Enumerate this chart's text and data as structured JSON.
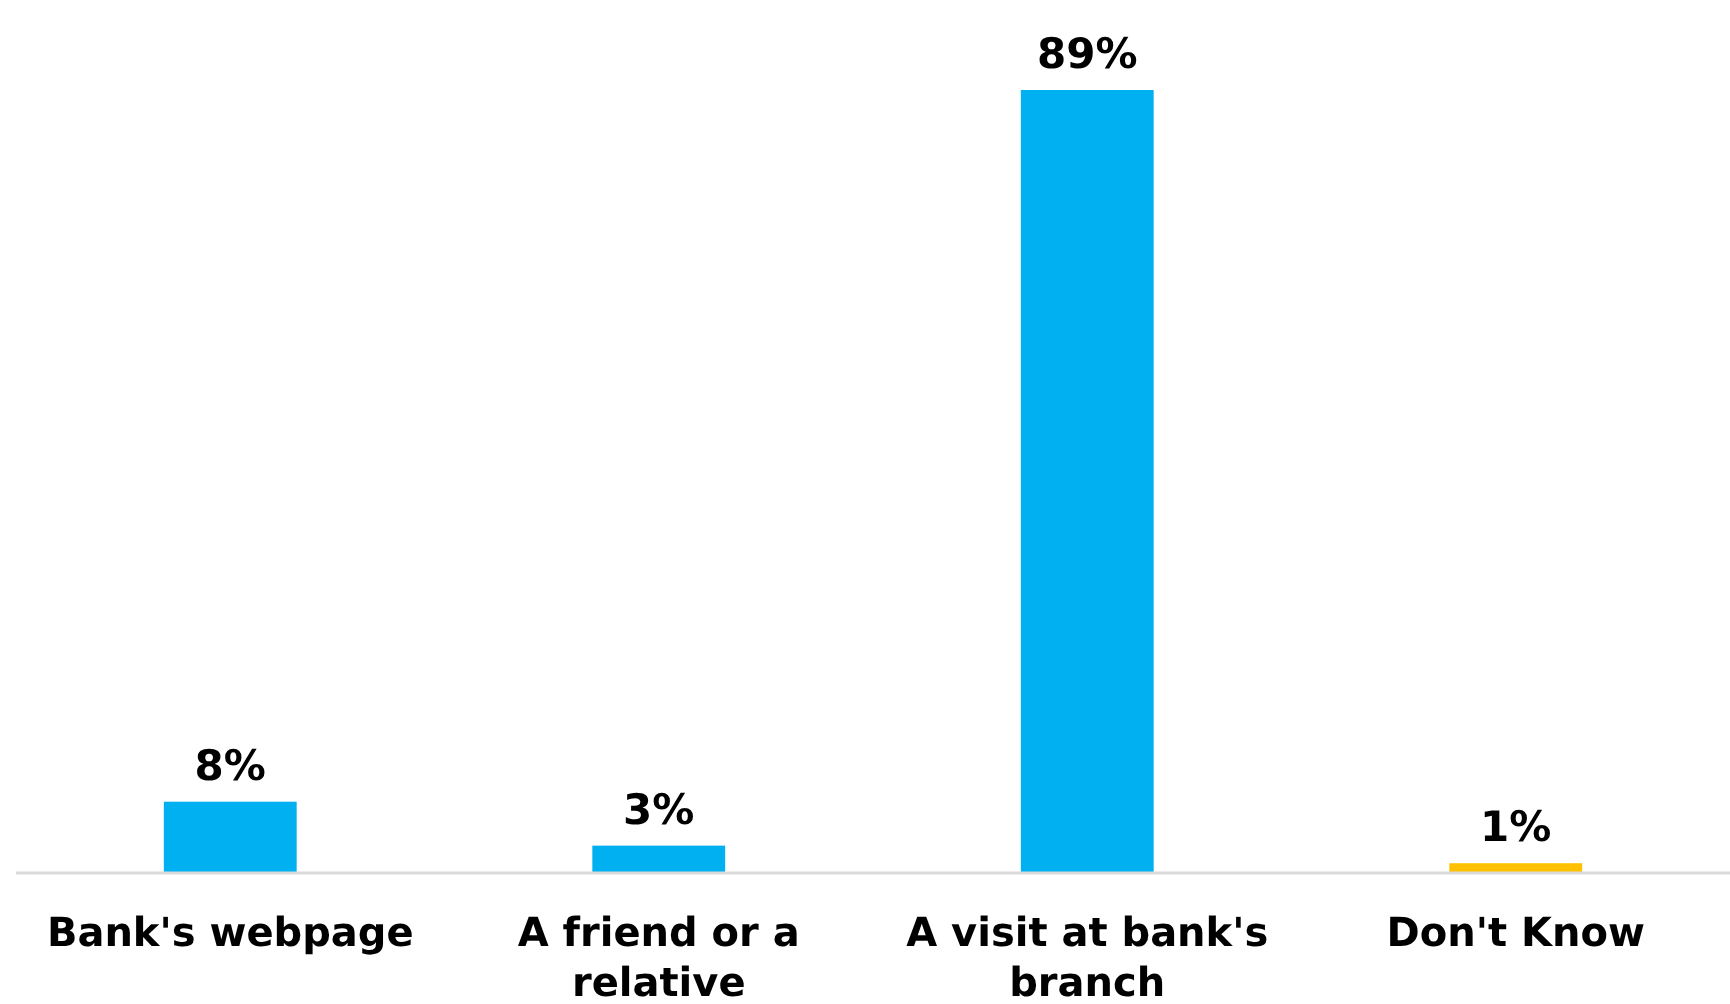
{
  "chart_data": {
    "type": "bar",
    "categories": [
      "Bank's webpage",
      "A friend or a relative",
      "A visit at bank's branch",
      "Don't Know"
    ],
    "values": [
      8,
      3,
      89,
      1
    ],
    "colors": [
      "#00b0f0",
      "#00b0f0",
      "#00b0f0",
      "#ffc000"
    ],
    "value_labels": [
      "8%",
      "3%",
      "89%",
      "1%"
    ]
  }
}
